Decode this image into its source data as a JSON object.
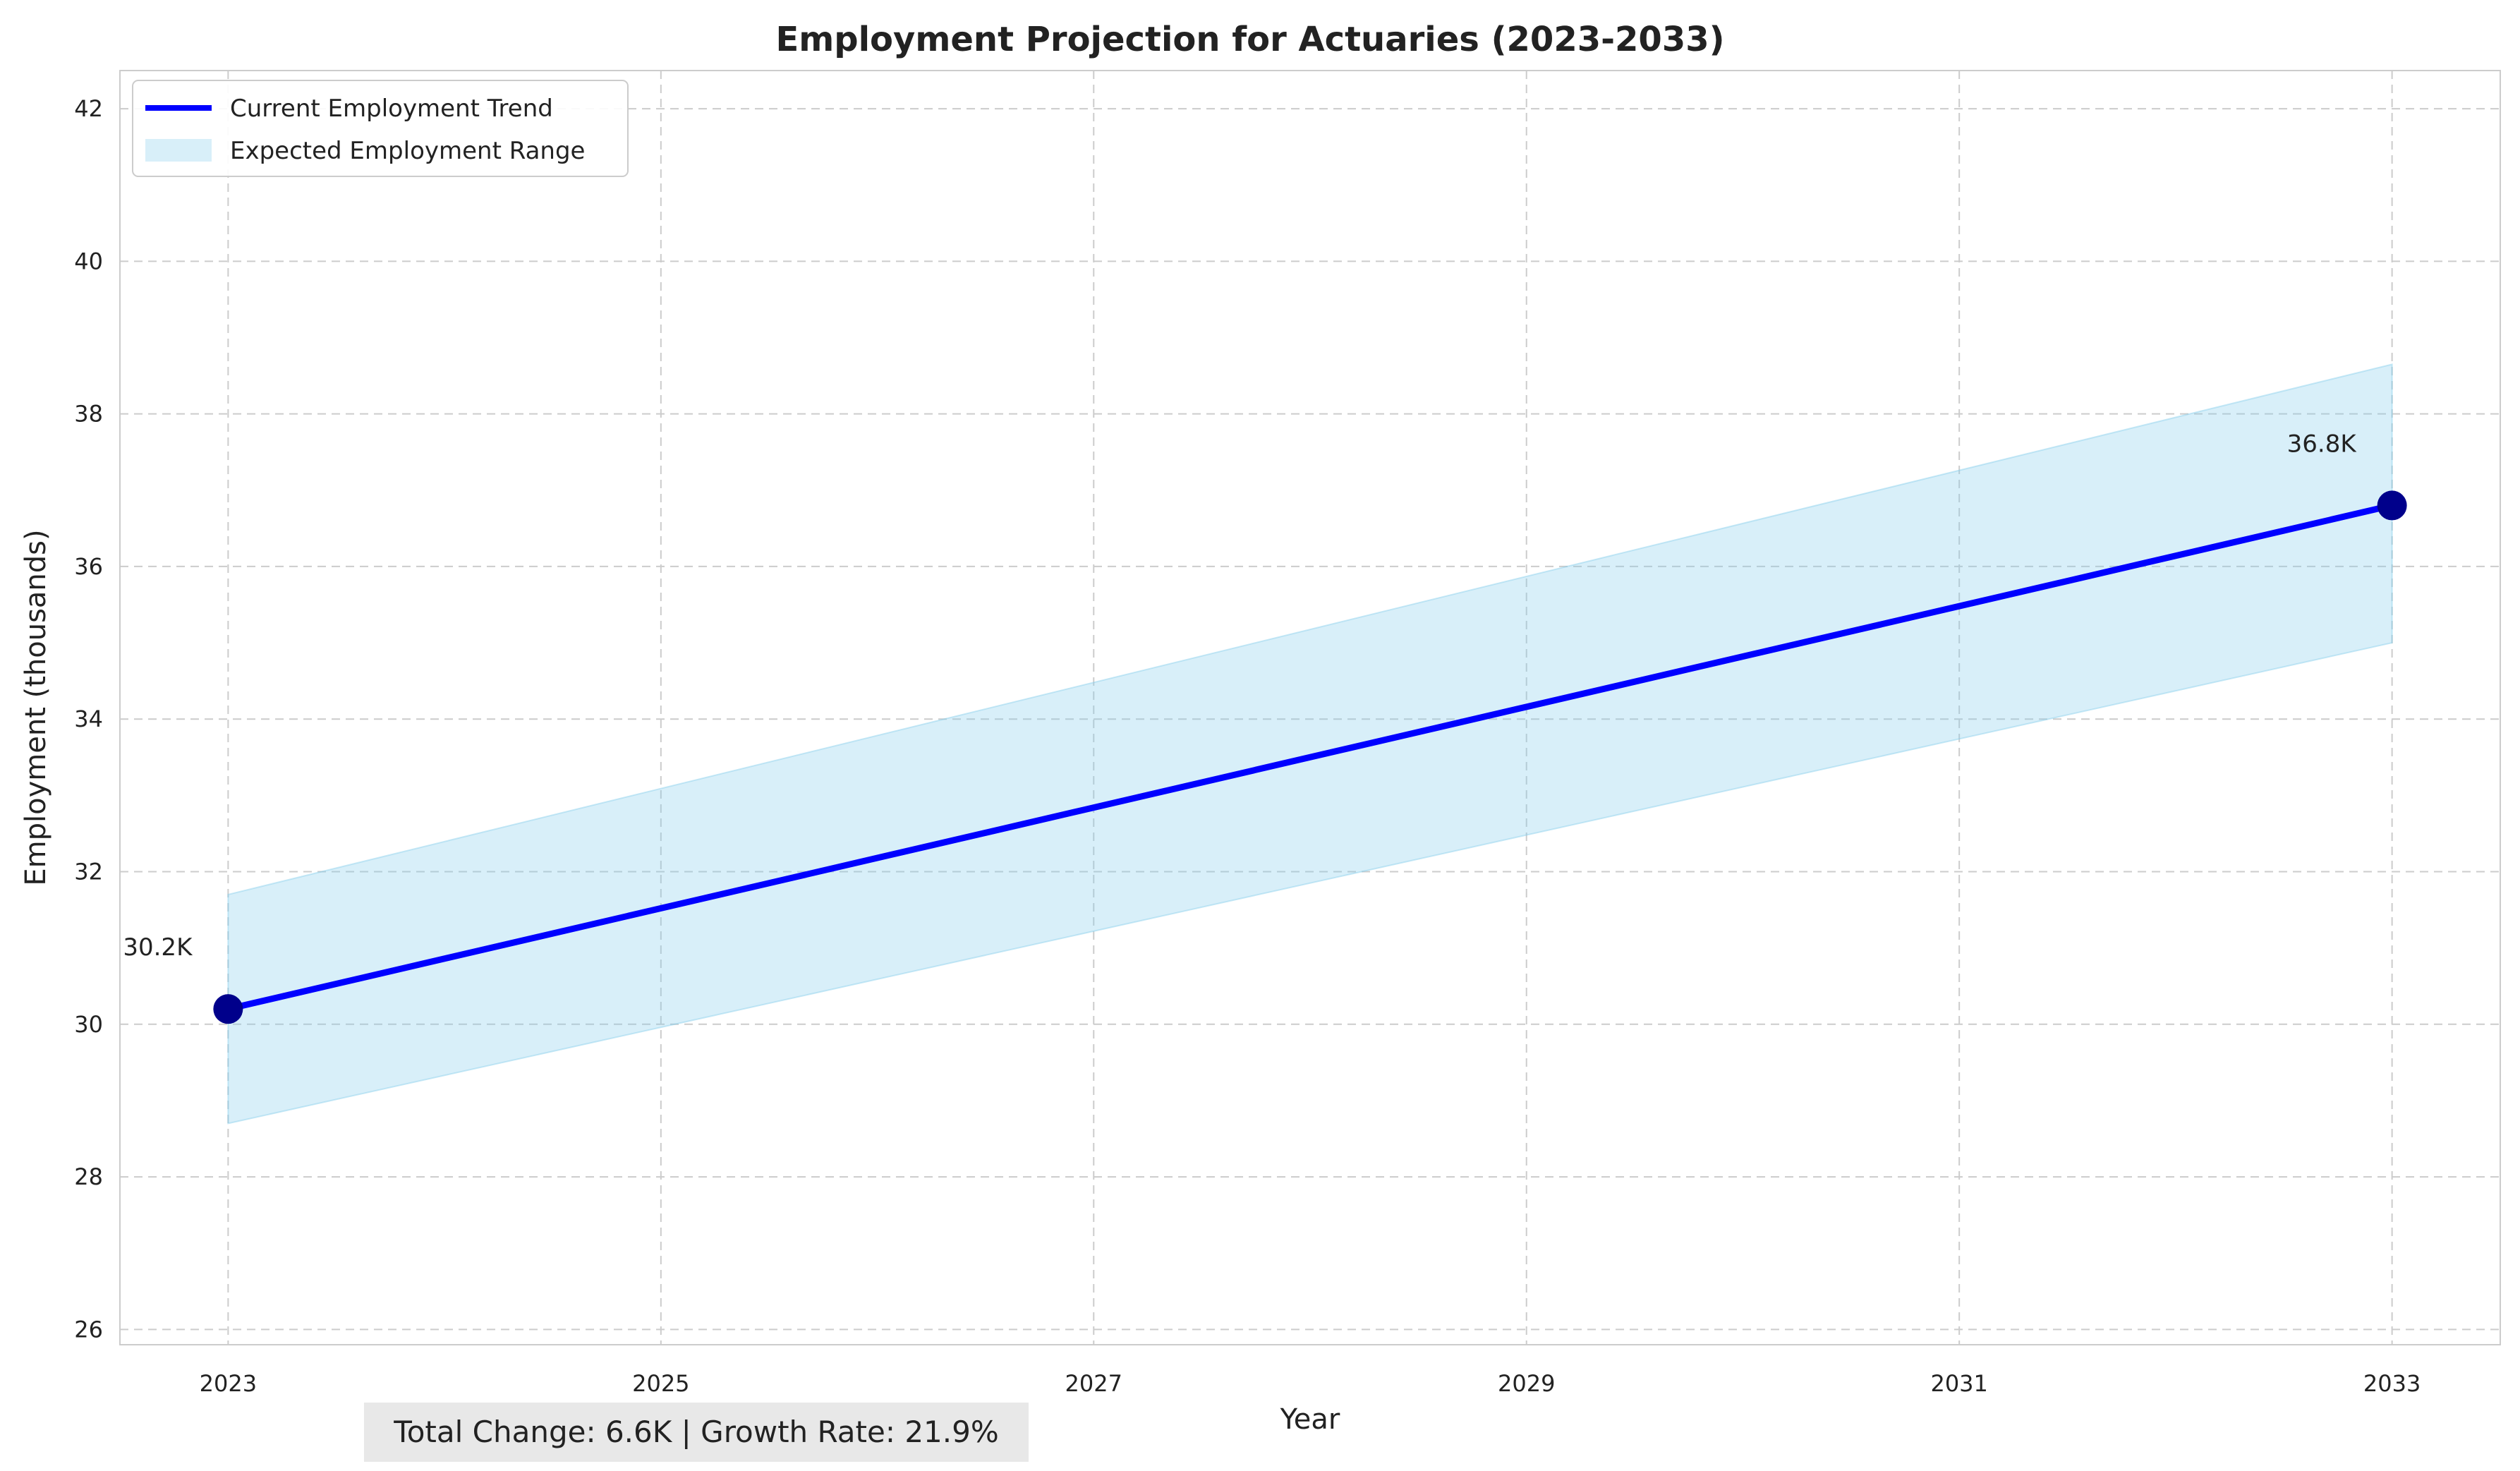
{
  "chart_data": {
    "type": "line",
    "title": "Employment Projection for Actuaries (2023-2033)",
    "xlabel": "Year",
    "ylabel": "Employment (thousands)",
    "xlim": [
      2022.5,
      2033.5
    ],
    "ylim": [
      25.8,
      42.5
    ],
    "xticks": [
      2023,
      2025,
      2027,
      2029,
      2031,
      2033
    ],
    "yticks": [
      26,
      28,
      30,
      32,
      34,
      36,
      38,
      40,
      42
    ],
    "grid": true,
    "legend_position": "top-left",
    "series": [
      {
        "name": "Current Employment Trend",
        "type": "line",
        "color": "#0000ff",
        "x": [
          2023,
          2033
        ],
        "y": [
          30.2,
          36.8
        ]
      },
      {
        "name": "Expected Employment Range",
        "type": "band",
        "color": "#87ceeb",
        "x": [
          2023,
          2033
        ],
        "lower": [
          28.7,
          35.0
        ],
        "upper": [
          31.7,
          38.65
        ]
      }
    ],
    "markers": {
      "color": "#00008b",
      "points": [
        {
          "x": 2023,
          "y": 30.2,
          "label": "30.2K"
        },
        {
          "x": 2033,
          "y": 36.8,
          "label": "36.8K"
        }
      ]
    },
    "footer": "Total Change: 6.6K | Growth Rate: 21.9%"
  }
}
